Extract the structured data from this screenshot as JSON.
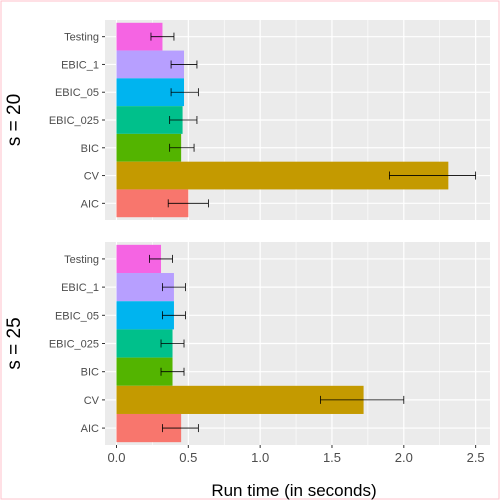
{
  "chart_data": {
    "type": "bar",
    "orientation": "horizontal",
    "xlabel": "Run time (in seconds)",
    "xlim": [
      -0.08,
      2.6
    ],
    "x_ticks": [
      0.0,
      0.5,
      1.0,
      1.5,
      2.0,
      2.5
    ],
    "x_tick_labels": [
      "0.0",
      "0.5",
      "1.0",
      "1.5",
      "2.0",
      "2.5"
    ],
    "grid": true,
    "legend": "none",
    "categories": [
      "Testing",
      "EBIC_1",
      "EBIC_05",
      "EBIC_025",
      "BIC",
      "CV",
      "AIC"
    ],
    "colors": {
      "Testing": "#F564E3",
      "EBIC_1": "#B79FFF",
      "EBIC_05": "#00B4EF",
      "EBIC_025": "#00C08B",
      "BIC": "#53B400",
      "CV": "#C49A00",
      "AIC": "#F8766D"
    },
    "panels": [
      {
        "label": "s = 20",
        "values": [
          0.32,
          0.47,
          0.47,
          0.46,
          0.45,
          2.31,
          0.5
        ],
        "error_low": [
          0.24,
          0.38,
          0.38,
          0.37,
          0.37,
          1.9,
          0.36
        ],
        "error_high": [
          0.4,
          0.56,
          0.57,
          0.56,
          0.54,
          2.5,
          0.64
        ]
      },
      {
        "label": "s = 25",
        "values": [
          0.31,
          0.4,
          0.4,
          0.39,
          0.39,
          1.72,
          0.45
        ],
        "error_low": [
          0.23,
          0.32,
          0.32,
          0.31,
          0.31,
          1.42,
          0.32
        ],
        "error_high": [
          0.39,
          0.48,
          0.48,
          0.47,
          0.47,
          2.0,
          0.57
        ]
      }
    ]
  }
}
